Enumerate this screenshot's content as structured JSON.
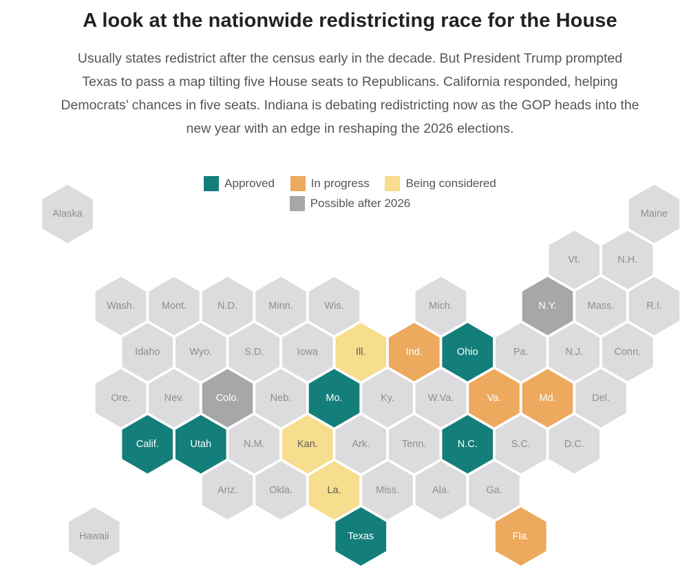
{
  "header": {
    "title": "A look at the nationwide redistricting race for the House",
    "dek_lines": [
      "Usually states redistrict after the census early in the decade. But President Trump prompted",
      "Texas to pass a map tilting five House seats to Republicans. California responded, helping",
      "Democrats’ chances in five seats. Indiana is debating redistricting now as the GOP heads into the",
      "new year with an edge in reshaping the 2026 elections."
    ]
  },
  "legend": [
    {
      "key": "approved",
      "label": "Approved",
      "color": "#137e7a"
    },
    {
      "key": "in_progress",
      "label": "In progress",
      "color": "#eda95e"
    },
    {
      "key": "considered",
      "label": "Being considered",
      "color": "#f7dd8e"
    },
    {
      "key": "after_2026",
      "label": "Possible after 2026",
      "color": "#a7a7a9"
    }
  ],
  "status_styles": {
    "none": {
      "fill": "#dcdcde",
      "text": "#8e8e90"
    },
    "approved": {
      "fill": "#137e7a",
      "text": "#ffffff"
    },
    "in_progress": {
      "fill": "#eda95e",
      "text": "#ffffff"
    },
    "considered": {
      "fill": "#f7dd8e",
      "text": "#5a5a5a"
    },
    "after_2026": {
      "fill": "#a7a7a9",
      "text": "#ffffff"
    }
  },
  "map": {
    "states": [
      {
        "label": "Alaska",
        "row": 0,
        "col": 0,
        "status": "none"
      },
      {
        "label": "Maine",
        "row": 0,
        "col": 11,
        "status": "none"
      },
      {
        "label": "Vt.",
        "row": 1,
        "col": 9,
        "status": "none"
      },
      {
        "label": "N.H.",
        "row": 1,
        "col": 10,
        "status": "none"
      },
      {
        "label": "Wash.",
        "row": 2,
        "col": 1,
        "status": "none"
      },
      {
        "label": "Mont.",
        "row": 2,
        "col": 2,
        "status": "none"
      },
      {
        "label": "N.D.",
        "row": 2,
        "col": 3,
        "status": "none"
      },
      {
        "label": "Minn.",
        "row": 2,
        "col": 4,
        "status": "none"
      },
      {
        "label": "Wis.",
        "row": 2,
        "col": 5,
        "status": "none"
      },
      {
        "label": "Mich.",
        "row": 2,
        "col": 7,
        "status": "none"
      },
      {
        "label": "N.Y.",
        "row": 2,
        "col": 9,
        "status": "after_2026"
      },
      {
        "label": "Mass.",
        "row": 2,
        "col": 10,
        "status": "none"
      },
      {
        "label": "R.I.",
        "row": 2,
        "col": 11,
        "status": "none"
      },
      {
        "label": "Idaho",
        "row": 3,
        "col": 1,
        "status": "none"
      },
      {
        "label": "Wyo.",
        "row": 3,
        "col": 2,
        "status": "none"
      },
      {
        "label": "S.D.",
        "row": 3,
        "col": 3,
        "status": "none"
      },
      {
        "label": "Iowa",
        "row": 3,
        "col": 4,
        "status": "none"
      },
      {
        "label": "Ill.",
        "row": 3,
        "col": 5,
        "status": "considered"
      },
      {
        "label": "Ind.",
        "row": 3,
        "col": 6,
        "status": "in_progress"
      },
      {
        "label": "Ohio",
        "row": 3,
        "col": 7,
        "status": "approved"
      },
      {
        "label": "Pa.",
        "row": 3,
        "col": 8,
        "status": "none"
      },
      {
        "label": "N.J.",
        "row": 3,
        "col": 9,
        "status": "none"
      },
      {
        "label": "Conn.",
        "row": 3,
        "col": 10,
        "status": "none"
      },
      {
        "label": "Ore.",
        "row": 4,
        "col": 1,
        "status": "none"
      },
      {
        "label": "Nev.",
        "row": 4,
        "col": 2,
        "status": "none"
      },
      {
        "label": "Colo.",
        "row": 4,
        "col": 3,
        "status": "after_2026"
      },
      {
        "label": "Neb.",
        "row": 4,
        "col": 4,
        "status": "none"
      },
      {
        "label": "Mo.",
        "row": 4,
        "col": 5,
        "status": "approved"
      },
      {
        "label": "Ky.",
        "row": 4,
        "col": 6,
        "status": "none"
      },
      {
        "label": "W.Va.",
        "row": 4,
        "col": 7,
        "status": "none"
      },
      {
        "label": "Va.",
        "row": 4,
        "col": 8,
        "status": "in_progress"
      },
      {
        "label": "Md.",
        "row": 4,
        "col": 9,
        "status": "in_progress"
      },
      {
        "label": "Del.",
        "row": 4,
        "col": 10,
        "status": "none"
      },
      {
        "label": "Calif.",
        "row": 5,
        "col": 1,
        "status": "approved"
      },
      {
        "label": "Utah",
        "row": 5,
        "col": 2,
        "status": "approved"
      },
      {
        "label": "N.M.",
        "row": 5,
        "col": 3,
        "status": "none"
      },
      {
        "label": "Kan.",
        "row": 5,
        "col": 4,
        "status": "considered"
      },
      {
        "label": "Ark.",
        "row": 5,
        "col": 5,
        "status": "none"
      },
      {
        "label": "Tenn.",
        "row": 5,
        "col": 6,
        "status": "none"
      },
      {
        "label": "N.C.",
        "row": 5,
        "col": 7,
        "status": "approved"
      },
      {
        "label": "S.C.",
        "row": 5,
        "col": 8,
        "status": "none"
      },
      {
        "label": "D.C.",
        "row": 5,
        "col": 9,
        "status": "none"
      },
      {
        "label": "Ariz.",
        "row": 6,
        "col": 3,
        "status": "none"
      },
      {
        "label": "Okla.",
        "row": 6,
        "col": 4,
        "status": "none"
      },
      {
        "label": "La.",
        "row": 6,
        "col": 5,
        "status": "considered"
      },
      {
        "label": "Miss.",
        "row": 6,
        "col": 6,
        "status": "none"
      },
      {
        "label": "Ala.",
        "row": 6,
        "col": 7,
        "status": "none"
      },
      {
        "label": "Ga.",
        "row": 6,
        "col": 8,
        "status": "none"
      },
      {
        "label": "Hawaii",
        "row": 7,
        "col": 0,
        "status": "none"
      },
      {
        "label": "Texas",
        "row": 7,
        "col": 5,
        "status": "approved"
      },
      {
        "label": "Fla.",
        "row": 7,
        "col": 8,
        "status": "in_progress"
      }
    ]
  }
}
